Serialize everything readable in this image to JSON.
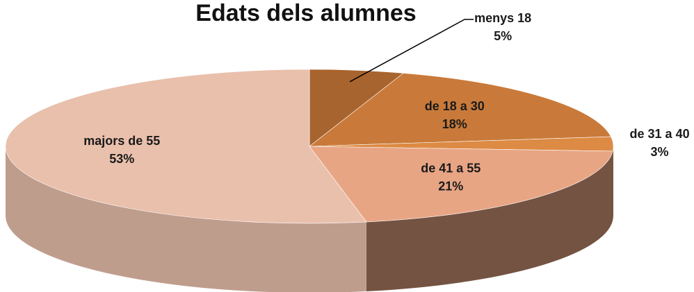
{
  "chart_data": {
    "type": "pie3d",
    "title": "Edats dels alumnes",
    "categories": [
      "menys 18",
      "de 18 a 30",
      "de 31 a 40",
      "de 41 a 55",
      "majors de 55"
    ],
    "values": [
      5,
      18,
      3,
      21,
      53
    ],
    "value_labels": [
      "5%",
      "18%",
      "3%",
      "21%",
      "53%"
    ],
    "colors": [
      "#a8642e",
      "#c97a3a",
      "#dc8a44",
      "#e8a584",
      "#e9c0ac"
    ]
  }
}
